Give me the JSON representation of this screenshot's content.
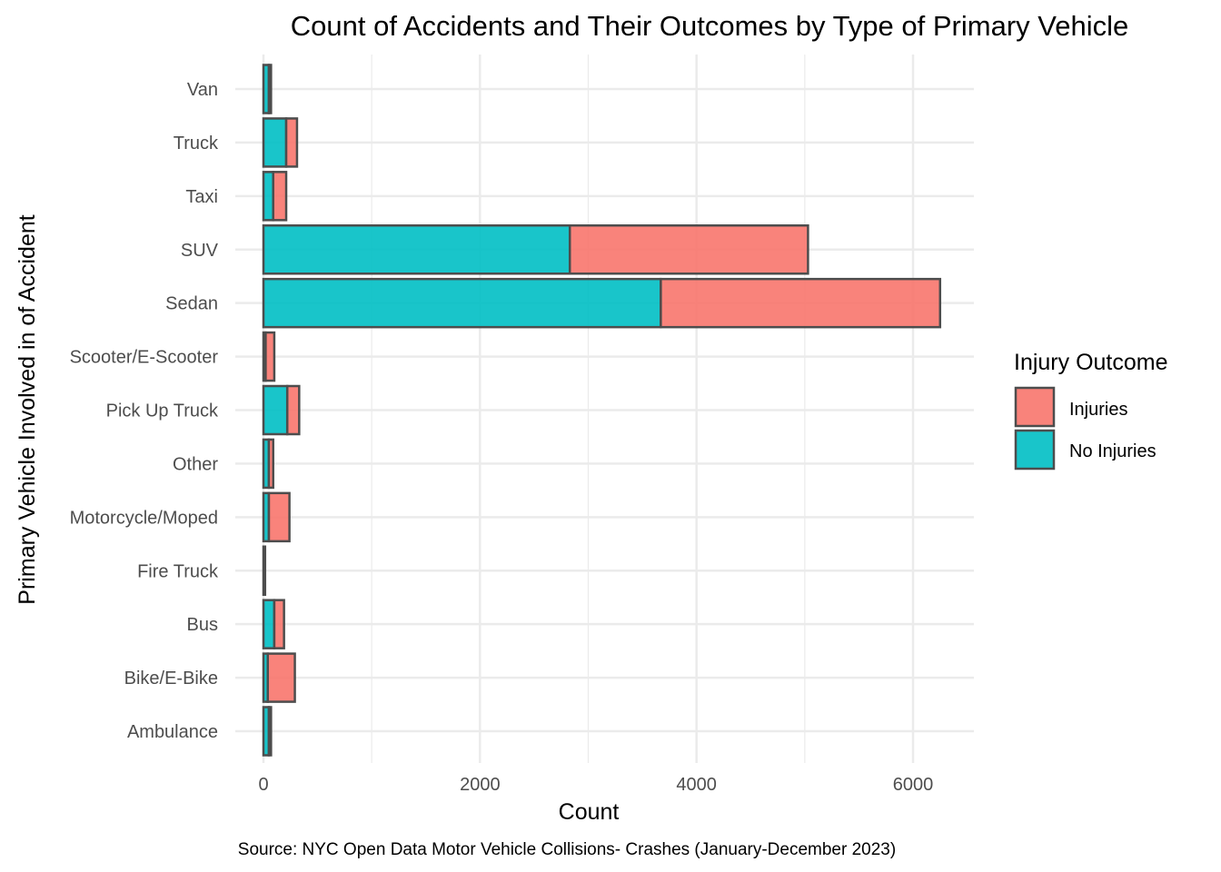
{
  "chart_data": {
    "type": "bar",
    "orientation": "horizontal",
    "stacked": true,
    "title": "Count of Accidents and Their Outcomes by Type of Primary Vehicle",
    "xlabel": "Count",
    "ylabel": "Primary Vehicle Involved in of Accident",
    "caption": "Source: NYC Open Data Motor Vehicle Collisions- Crashes (January-December 2023)",
    "xlim": [
      0,
      6550
    ],
    "xticks": [
      0,
      2000,
      4000,
      6000
    ],
    "grid": true,
    "legend": {
      "title": "Injury Outcome",
      "position": "right",
      "items": [
        {
          "label": "Injuries",
          "color": "#f8766d"
        },
        {
          "label": "No Injuries",
          "color": "#00bfc4"
        }
      ]
    },
    "categories": [
      "Ambulance",
      "Bike/E-Bike",
      "Bus",
      "Fire Truck",
      "Motorcycle/Moped",
      "Other",
      "Pick Up Truck",
      "Scooter/E-Scooter",
      "Sedan",
      "SUV",
      "Taxi",
      "Truck",
      "Van"
    ],
    "series": [
      {
        "name": "No Injuries",
        "color": "#00bfc4",
        "values": [
          50,
          40,
          100,
          10,
          50,
          50,
          220,
          20,
          3670,
          2830,
          90,
          210,
          50
        ]
      },
      {
        "name": "Injuries",
        "color": "#f8766d",
        "values": [
          20,
          250,
          90,
          5,
          190,
          40,
          110,
          80,
          2580,
          2200,
          120,
          100,
          20
        ]
      }
    ]
  }
}
